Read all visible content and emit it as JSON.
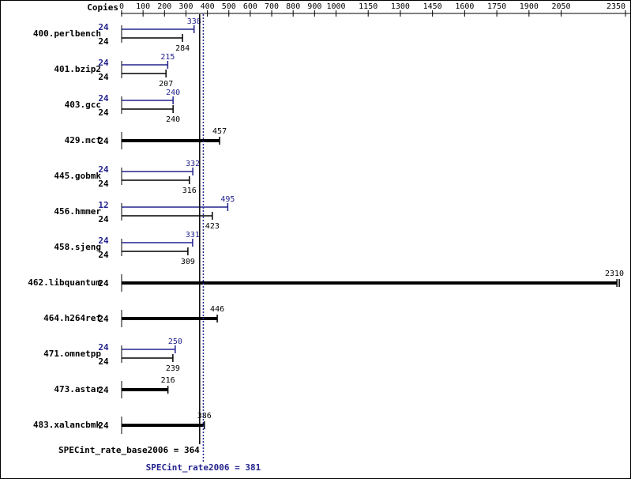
{
  "chart_data": {
    "type": "bar",
    "orientation": "horizontal",
    "axis_label": "Copies",
    "categories": [
      "400.perlbench",
      "401.bzip2",
      "403.gcc",
      "429.mcf",
      "445.gobmk",
      "456.hmmer",
      "458.sjeng",
      "462.libquantum",
      "464.h264ref",
      "471.omnetpp",
      "473.astar",
      "483.xalancbmk"
    ],
    "series": [
      {
        "color": "#23238e",
        "values": [
          338,
          215,
          240,
          null,
          332,
          495,
          331,
          null,
          null,
          250,
          null,
          null
        ],
        "copies": [
          24,
          24,
          24,
          null,
          24,
          12,
          24,
          null,
          null,
          24,
          null,
          null
        ]
      },
      {
        "color": "#000000",
        "values": [
          284,
          207,
          240,
          457,
          316,
          423,
          309,
          2310,
          446,
          239,
          216,
          386
        ],
        "copies": [
          24,
          24,
          24,
          24,
          24,
          24,
          24,
          24,
          24,
          24,
          24,
          24
        ]
      }
    ],
    "xlim": [
      0,
      2350
    ],
    "xticks": [
      0,
      100,
      200,
      300,
      400,
      500,
      600,
      700,
      800,
      900,
      1000,
      1150,
      1300,
      1450,
      1600,
      1750,
      1900,
      2050,
      2350
    ],
    "reference_lines": [
      {
        "label": "SPECint_rate_base2006 = 364",
        "value": 364,
        "color": "#000000",
        "style": "solid"
      },
      {
        "label": "SPECint_rate2006 = 381",
        "value": 381,
        "color": "#23238e",
        "style": "dotted"
      }
    ]
  }
}
